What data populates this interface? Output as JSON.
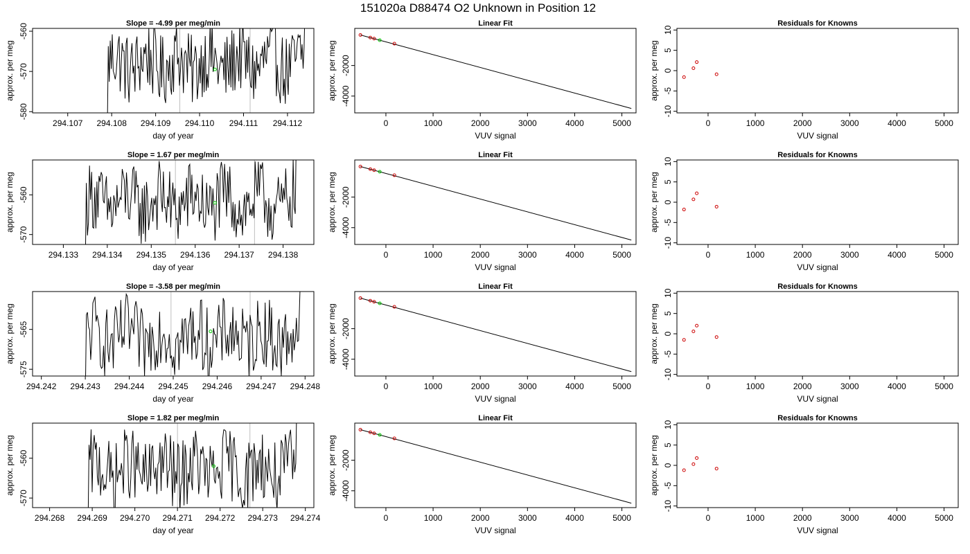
{
  "figure": {
    "title": "151020a     D88474   O2 Unknown in Position  12"
  },
  "colors": {
    "frame": "#000000",
    "trace": "#000000",
    "marker_known": "#cc0000",
    "marker_unknown": "#00cc00",
    "vline": "#bebebe",
    "fit_line": "#000000"
  },
  "chart_data": [
    {
      "type": "line",
      "panel": "time-series",
      "row": 1,
      "title": "Slope =  -4.99  per meg/min",
      "xlabel": "day of year",
      "ylabel": "approx. per meg",
      "xlim": [
        294.1062,
        294.1126
      ],
      "ylim": [
        -580.3,
        -559.3
      ],
      "xticks": [
        294.107,
        294.108,
        294.109,
        294.11,
        294.111,
        294.112
      ],
      "xtick_labels": [
        "294.107",
        "294.108",
        "294.109",
        "294.110",
        "294.111",
        "294.112"
      ],
      "yticks": [
        -580,
        -570,
        -560
      ],
      "ytick_labels": [
        "-580",
        "-570",
        "-560"
      ],
      "trace_start": 294.1079,
      "trace_end": 294.1124,
      "trace_center": -568,
      "trace_amp": 6.5,
      "vlines": [
        294.10955,
        294.11115
      ],
      "unknown_point": {
        "x": 294.11035,
        "y": -569.5
      }
    },
    {
      "type": "line",
      "panel": "time-series",
      "row": 2,
      "title": "Slope =  1.67  per meg/min",
      "xlabel": "day of year",
      "ylabel": "approx. per meg",
      "xlim": [
        294.1323,
        294.1387
      ],
      "ylim": [
        -572.5,
        -551.2
      ],
      "xticks": [
        294.133,
        294.134,
        294.135,
        294.136,
        294.137,
        294.138
      ],
      "xtick_labels": [
        "294.133",
        "294.134",
        "294.135",
        "294.136",
        "294.137",
        "294.138"
      ],
      "yticks": [
        -570,
        -560
      ],
      "ytick_labels": [
        "-570",
        "-560"
      ],
      "trace_start": 294.1335,
      "trace_end": 294.1383,
      "trace_center": -562,
      "trace_amp": 6.5,
      "vlines": [
        294.13555,
        294.13735
      ],
      "unknown_point": {
        "x": 294.13645,
        "y": -562
      }
    },
    {
      "type": "line",
      "panel": "time-series",
      "row": 3,
      "title": "Slope =  -3.58  per meg/min",
      "xlabel": "day of year",
      "ylabel": "approx. per meg",
      "xlim": [
        294.2418,
        294.2482
      ],
      "ylim": [
        -576.7,
        -555.5
      ],
      "xticks": [
        294.242,
        294.243,
        294.244,
        294.245,
        294.246,
        294.247,
        294.248
      ],
      "xtick_labels": [
        "294.242",
        "294.243",
        "294.244",
        "294.245",
        "294.246",
        "294.247",
        "294.248"
      ],
      "yticks": [
        -575,
        -565
      ],
      "ytick_labels": [
        "-575",
        "-565"
      ],
      "trace_start": 294.243,
      "trace_end": 294.2479,
      "trace_center": -567,
      "trace_amp": 6.5,
      "vlines": [
        294.24495,
        294.24675
      ],
      "unknown_point": {
        "x": 294.24585,
        "y": -565.5
      }
    },
    {
      "type": "line",
      "panel": "time-series",
      "row": 4,
      "title": "Slope =  1.82  per meg/min",
      "xlabel": "day of year",
      "ylabel": "approx. per meg",
      "xlim": [
        294.2676,
        294.2742
      ],
      "ylim": [
        -572.4,
        -551.2
      ],
      "xticks": [
        294.268,
        294.269,
        294.27,
        294.271,
        294.272,
        294.273,
        294.274
      ],
      "xtick_labels": [
        "294.268",
        "294.269",
        "294.270",
        "294.271",
        "294.272",
        "294.273",
        "294.274"
      ],
      "yticks": [
        -570,
        -560
      ],
      "ytick_labels": [
        "-570",
        "-560"
      ],
      "trace_start": 294.2689,
      "trace_end": 294.2738,
      "trace_center": -563,
      "trace_amp": 6.5,
      "vlines": [
        294.271,
        294.2727
      ],
      "unknown_point": {
        "x": 294.27185,
        "y": -562
      }
    },
    {
      "type": "scatter",
      "panel": "linear-fit",
      "row": 1,
      "title": "Linear Fit",
      "xlabel": "VUV signal",
      "ylabel": "approx. per meg",
      "xlim": [
        -660,
        5300
      ],
      "ylim": [
        -5100,
        430
      ],
      "xticks": [
        0,
        1000,
        2000,
        3000,
        4000,
        5000
      ],
      "xtick_labels": [
        "0",
        "1000",
        "2000",
        "3000",
        "4000",
        "5000"
      ],
      "yticks": [
        -4000,
        -2000
      ],
      "ytick_labels": [
        "-4000",
        "-2000"
      ],
      "line": {
        "x1": -540,
        "y1": 1,
        "x2": 5200,
        "y2": -4810
      },
      "knowns": [
        {
          "x": -540,
          "y": 1
        },
        {
          "x": -330,
          "y": -170
        },
        {
          "x": -250,
          "y": -240
        },
        {
          "x": 180,
          "y": -570
        }
      ],
      "unknown": {
        "x": -130,
        "y": -340
      }
    },
    {
      "type": "scatter",
      "panel": "linear-fit",
      "row": 2,
      "title": "Linear Fit",
      "xlabel": "VUV signal",
      "ylabel": "approx. per meg",
      "xlim": [
        -660,
        5300
      ],
      "ylim": [
        -5100,
        430
      ],
      "xticks": [
        0,
        1000,
        2000,
        3000,
        4000,
        5000
      ],
      "xtick_labels": [
        "0",
        "1000",
        "2000",
        "3000",
        "4000",
        "5000"
      ],
      "yticks": [
        -4000,
        -2000
      ],
      "ytick_labels": [
        "-4000",
        "-2000"
      ],
      "line": {
        "x1": -540,
        "y1": 1,
        "x2": 5200,
        "y2": -4810
      },
      "knowns": [
        {
          "x": -540,
          "y": 1
        },
        {
          "x": -330,
          "y": -170
        },
        {
          "x": -250,
          "y": -240
        },
        {
          "x": 180,
          "y": -570
        }
      ],
      "unknown": {
        "x": -130,
        "y": -340
      }
    },
    {
      "type": "scatter",
      "panel": "linear-fit",
      "row": 3,
      "title": "Linear Fit",
      "xlabel": "VUV signal",
      "ylabel": "approx. per meg",
      "xlim": [
        -660,
        5300
      ],
      "ylim": [
        -5100,
        430
      ],
      "xticks": [
        0,
        1000,
        2000,
        3000,
        4000,
        5000
      ],
      "xtick_labels": [
        "0",
        "1000",
        "2000",
        "3000",
        "4000",
        "5000"
      ],
      "yticks": [
        -4000,
        -2000
      ],
      "ytick_labels": [
        "-4000",
        "-2000"
      ],
      "line": {
        "x1": -540,
        "y1": 1,
        "x2": 5200,
        "y2": -4810
      },
      "knowns": [
        {
          "x": -540,
          "y": 1
        },
        {
          "x": -330,
          "y": -170
        },
        {
          "x": -250,
          "y": -240
        },
        {
          "x": 180,
          "y": -570
        }
      ],
      "unknown": {
        "x": -130,
        "y": -340
      }
    },
    {
      "type": "scatter",
      "panel": "linear-fit",
      "row": 4,
      "title": "Linear Fit",
      "xlabel": "VUV signal",
      "ylabel": "approx. per meg",
      "xlim": [
        -660,
        5300
      ],
      "ylim": [
        -5100,
        430
      ],
      "xticks": [
        0,
        1000,
        2000,
        3000,
        4000,
        5000
      ],
      "xtick_labels": [
        "0",
        "1000",
        "2000",
        "3000",
        "4000",
        "5000"
      ],
      "yticks": [
        -4000,
        -2000
      ],
      "ytick_labels": [
        "-4000",
        "-2000"
      ],
      "line": {
        "x1": -540,
        "y1": 1,
        "x2": 5200,
        "y2": -4810
      },
      "knowns": [
        {
          "x": -540,
          "y": 1
        },
        {
          "x": -330,
          "y": -170
        },
        {
          "x": -250,
          "y": -240
        },
        {
          "x": 180,
          "y": -570
        }
      ],
      "unknown": {
        "x": -130,
        "y": -340
      }
    },
    {
      "type": "scatter",
      "panel": "residuals",
      "row": 1,
      "title": "Residuals for Knowns",
      "xlabel": "VUV signal",
      "ylabel": "approx. per meg",
      "xlim": [
        -660,
        5300
      ],
      "ylim": [
        -10.4,
        10.4
      ],
      "xticks": [
        0,
        1000,
        2000,
        3000,
        4000,
        5000
      ],
      "xtick_labels": [
        "0",
        "1000",
        "2000",
        "3000",
        "4000",
        "5000"
      ],
      "yticks": [
        -10,
        -5,
        0,
        5,
        10
      ],
      "ytick_labels": [
        "-10",
        "-5",
        "0",
        "5",
        "10"
      ],
      "knowns": [
        {
          "x": -510,
          "y": -1.6
        },
        {
          "x": -310,
          "y": 0.6
        },
        {
          "x": -240,
          "y": 2.1
        },
        {
          "x": 180,
          "y": -0.9
        }
      ]
    },
    {
      "type": "scatter",
      "panel": "residuals",
      "row": 2,
      "title": "Residuals for Knowns",
      "xlabel": "VUV signal",
      "ylabel": "approx. per meg",
      "xlim": [
        -660,
        5300
      ],
      "ylim": [
        -10.4,
        10.4
      ],
      "xticks": [
        0,
        1000,
        2000,
        3000,
        4000,
        5000
      ],
      "xtick_labels": [
        "0",
        "1000",
        "2000",
        "3000",
        "4000",
        "5000"
      ],
      "yticks": [
        -10,
        -5,
        0,
        5,
        10
      ],
      "ytick_labels": [
        "-10",
        "-5",
        "0",
        "5",
        "10"
      ],
      "knowns": [
        {
          "x": -510,
          "y": -1.8
        },
        {
          "x": -310,
          "y": 0.7
        },
        {
          "x": -240,
          "y": 2.2
        },
        {
          "x": 180,
          "y": -1.1
        }
      ]
    },
    {
      "type": "scatter",
      "panel": "residuals",
      "row": 3,
      "title": "Residuals for Knowns",
      "xlabel": "VUV signal",
      "ylabel": "approx. per meg",
      "xlim": [
        -660,
        5300
      ],
      "ylim": [
        -10.4,
        10.4
      ],
      "xticks": [
        0,
        1000,
        2000,
        3000,
        4000,
        5000
      ],
      "xtick_labels": [
        "0",
        "1000",
        "2000",
        "3000",
        "4000",
        "5000"
      ],
      "yticks": [
        -10,
        -5,
        0,
        5,
        10
      ],
      "ytick_labels": [
        "-10",
        "-5",
        "0",
        "5",
        "10"
      ],
      "knowns": [
        {
          "x": -510,
          "y": -1.5
        },
        {
          "x": -310,
          "y": 0.6
        },
        {
          "x": -240,
          "y": 2.0
        },
        {
          "x": 180,
          "y": -0.8
        }
      ]
    },
    {
      "type": "scatter",
      "panel": "residuals",
      "row": 4,
      "title": "Residuals for Knowns",
      "xlabel": "VUV signal",
      "ylabel": "approx. per meg",
      "xlim": [
        -660,
        5300
      ],
      "ylim": [
        -10.4,
        10.4
      ],
      "xticks": [
        0,
        1000,
        2000,
        3000,
        4000,
        5000
      ],
      "xtick_labels": [
        "0",
        "1000",
        "2000",
        "3000",
        "4000",
        "5000"
      ],
      "yticks": [
        -10,
        -5,
        0,
        5,
        10
      ],
      "ytick_labels": [
        "-10",
        "-5",
        "0",
        "5",
        "10"
      ],
      "knowns": [
        {
          "x": -510,
          "y": -1.2
        },
        {
          "x": -310,
          "y": 0.3
        },
        {
          "x": -240,
          "y": 1.8
        },
        {
          "x": 180,
          "y": -0.8
        }
      ]
    }
  ]
}
